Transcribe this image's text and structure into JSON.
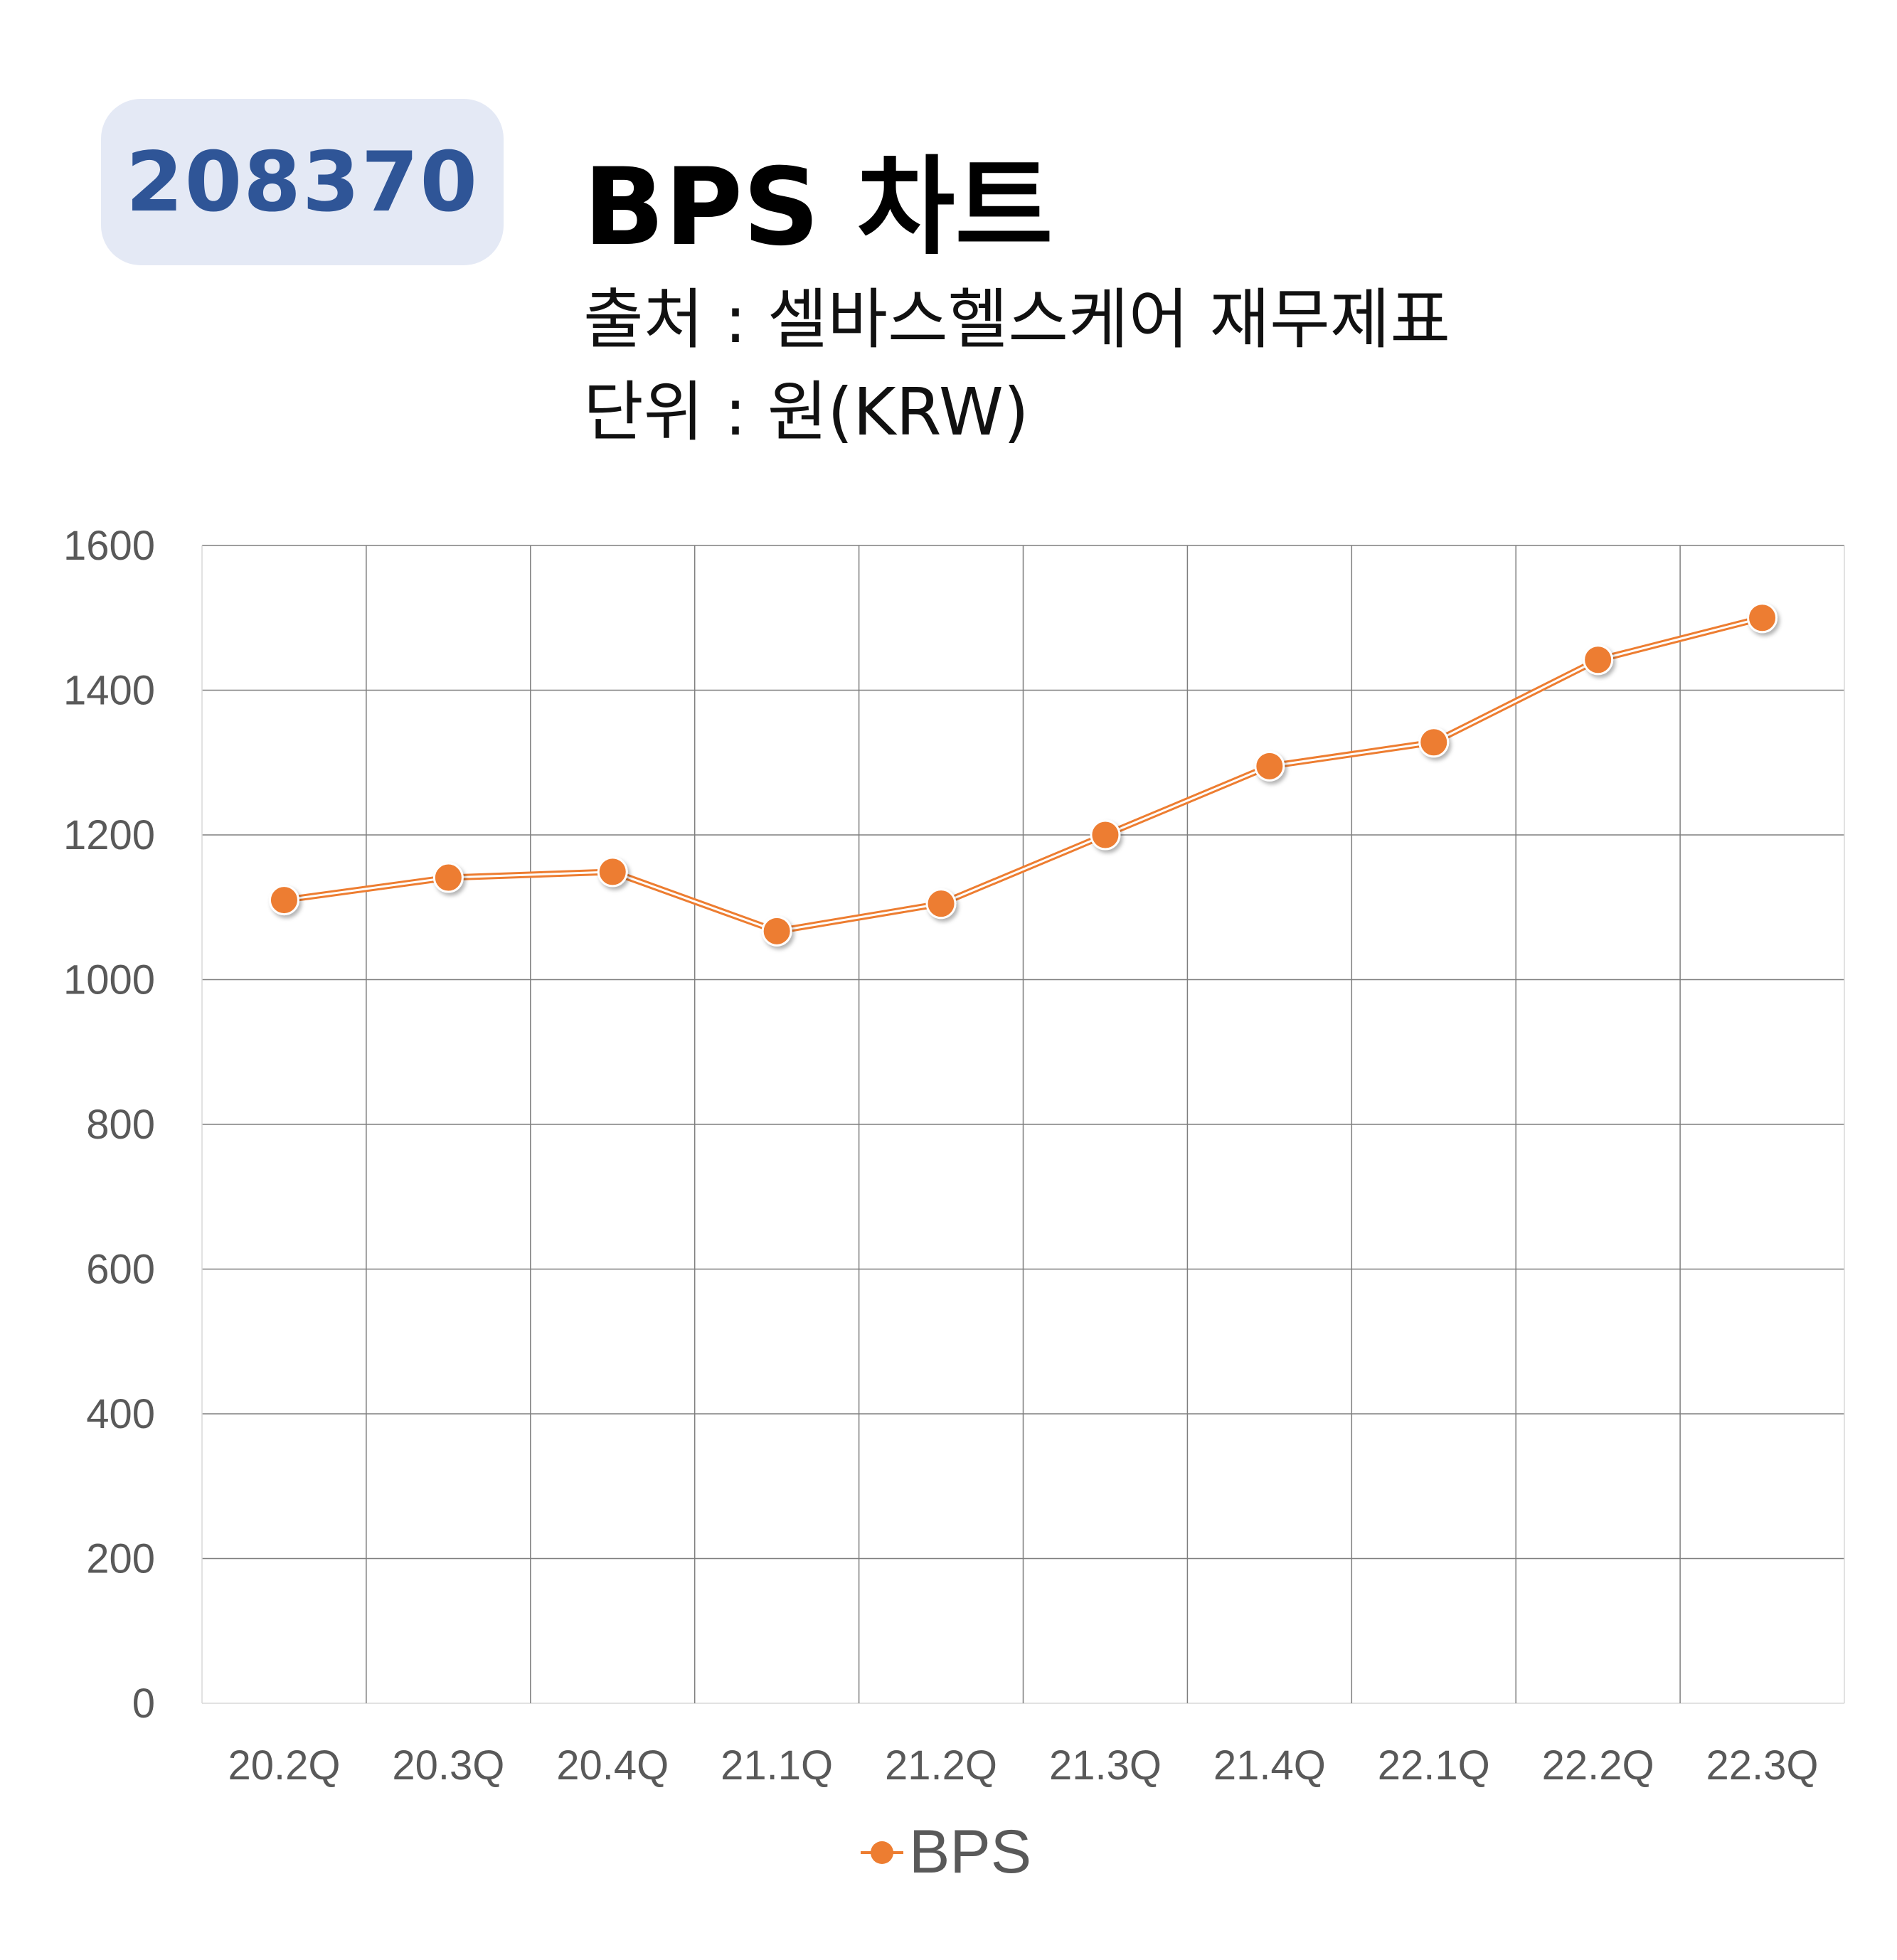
{
  "header": {
    "ticker": "208370",
    "title": "BPS 차트",
    "source": "출처 : 셀바스헬스케어 재무제표",
    "unit": "단위 : 원(KRW)"
  },
  "colors": {
    "series": "#ed7d31",
    "badge_bg": "#e4e9f5",
    "badge_text": "#2f5597",
    "grid": "#7f7f7f",
    "tick_text": "#595959"
  },
  "chart_data": {
    "type": "line",
    "categories": [
      "20.2Q",
      "20.3Q",
      "20.4Q",
      "21.1Q",
      "21.2Q",
      "21.3Q",
      "21.4Q",
      "22.1Q",
      "22.2Q",
      "22.3Q"
    ],
    "series": [
      {
        "name": "BPS",
        "values": [
          1110,
          1141,
          1149,
          1067,
          1105,
          1200,
          1295,
          1328,
          1442,
          1500
        ]
      }
    ],
    "ylim": [
      0,
      1600
    ],
    "yticks": [
      0,
      200,
      400,
      600,
      800,
      1000,
      1200,
      1400,
      1600
    ],
    "grid": true,
    "legend_position": "bottom"
  }
}
